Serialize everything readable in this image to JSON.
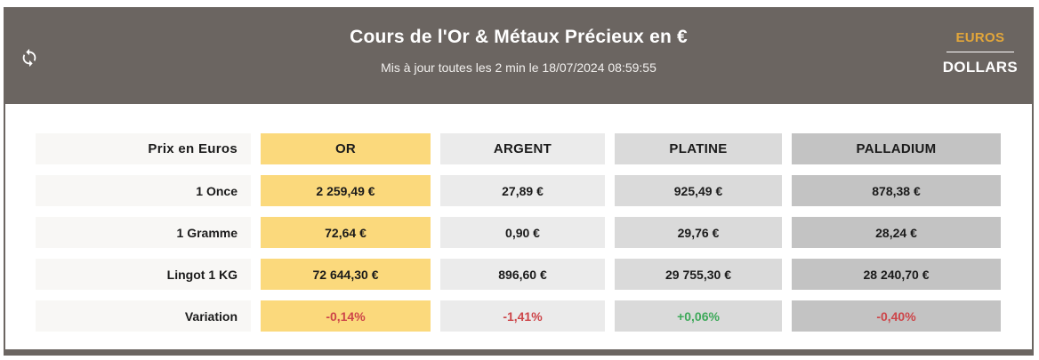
{
  "header": {
    "title": "Cours de l'Or & Métaux Précieux en €",
    "subtitle": "Mis à jour toutes les 2 min le 18/07/2024 08:59:55",
    "refresh_icon": "refresh-sync-icon",
    "currency": {
      "euros": "EUROS",
      "dollars": "DOLLARS",
      "active": "EUROS",
      "active_color": "#e2a63a",
      "inactive_color": "#ffffff"
    },
    "background_color": "#6b6561"
  },
  "table": {
    "corner_label": "Prix en Euros",
    "columns": [
      {
        "label": "OR",
        "color": "#fbd97c"
      },
      {
        "label": "ARGENT",
        "color": "#ebebeb"
      },
      {
        "label": "PLATINE",
        "color": "#dadada"
      },
      {
        "label": "PALLADIUM",
        "color": "#c3c3c3"
      }
    ],
    "rows": [
      {
        "label": "1 Once",
        "values": [
          "2 259,49 €",
          "27,89 €",
          "925,49 €",
          "878,38 €"
        ]
      },
      {
        "label": "1 Gramme",
        "values": [
          "72,64 €",
          "0,90 €",
          "29,76 €",
          "28,24 €"
        ]
      },
      {
        "label": "Lingot 1 KG",
        "values": [
          "72 644,30 €",
          "896,60 €",
          "29 755,30 €",
          "28 240,70 €"
        ]
      },
      {
        "label": "Variation",
        "values": [
          "-0,14%",
          "-1,41%",
          "+0,06%",
          "-0,40%"
        ],
        "value_colors": [
          "#cd4549",
          "#cd4549",
          "#3ea95a",
          "#cd4549"
        ]
      }
    ],
    "label_cell_color": "#f8f7f5"
  }
}
